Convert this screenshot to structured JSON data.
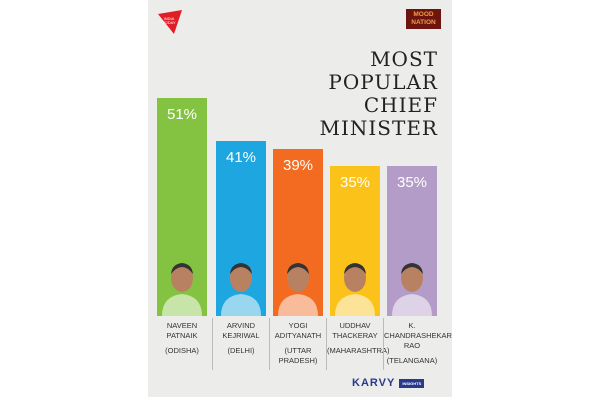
{
  "logos": {
    "left": "INDIA TODAY GROUP",
    "right_line1": "MOOD",
    "right_line2": "NATION",
    "bottom": "KARVY",
    "bottom_tag": "INSIGHTS"
  },
  "title_lines": [
    "MOST",
    "POPULAR",
    "CHIEF",
    "MINISTER"
  ],
  "chart_data": {
    "type": "bar",
    "title": "MOST POPULAR CHIEF MINISTER",
    "categories": [
      "NAVEEN PATNAIK (ODISHA)",
      "ARVIND KEJRIWAL (DELHI)",
      "YOGI ADITYANATH (UTTAR PRADESH)",
      "UDDHAV THACKERAY (MAHARASHTRA)",
      "K. CHANDRASHEKAR RAO (TELANGANA)"
    ],
    "values": [
      51,
      41,
      39,
      35,
      35
    ],
    "data_labels": [
      "51%",
      "41%",
      "39%",
      "35%",
      "35%"
    ],
    "colors": [
      "#84c341",
      "#1da6e0",
      "#f26b21",
      "#fbc21a",
      "#b49cc8"
    ],
    "unit": "%",
    "bars": [
      {
        "name_lines": [
          "NAVEEN",
          "PATNAIK"
        ],
        "state": "(ODISHA)"
      },
      {
        "name_lines": [
          "ARVIND",
          "KEJRIWAL"
        ],
        "state": "(DELHI)"
      },
      {
        "name_lines": [
          "YOGI",
          "ADITYANATH"
        ],
        "state": "(UTTAR PRADESH)"
      },
      {
        "name_lines": [
          "UDDHAV",
          "THACKERAY"
        ],
        "state": "(MAHARASHTRA)"
      },
      {
        "name_lines": [
          "K.",
          "CHANDRASHEKAR",
          "RAO"
        ],
        "state": "(TELANGANA)"
      }
    ]
  }
}
